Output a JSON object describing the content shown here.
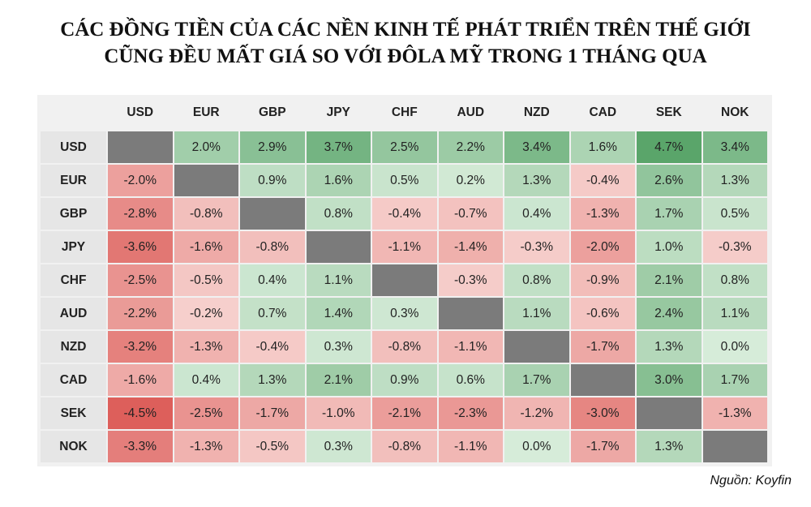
{
  "title": {
    "line1": "CÁC ĐỒNG TIỀN CỦA CÁC NỀN KINH TẾ PHÁT TRIỂN TRÊN THẾ GIỚI",
    "line2": "CŨNG ĐỀU MẤT GIÁ SO VỚI ĐÔLA MỸ TRONG 1 THÁNG QUA"
  },
  "source": "Nguồn: Koyfin",
  "colors": {
    "positive_max": "#5aa56a",
    "positive_min": "#d6ecd9",
    "negative_max": "#dc5a56",
    "negative_min": "#f7d4d1",
    "diagonal": "#7b7b7b"
  },
  "chart_data": {
    "type": "heatmap",
    "columns": [
      "USD",
      "EUR",
      "GBP",
      "JPY",
      "CHF",
      "AUD",
      "NZD",
      "CAD",
      "SEK",
      "NOK"
    ],
    "rows": [
      "USD",
      "EUR",
      "GBP",
      "JPY",
      "CHF",
      "AUD",
      "NZD",
      "CAD",
      "SEK",
      "NOK"
    ],
    "unit": "%",
    "values": [
      [
        null,
        2.0,
        2.9,
        3.7,
        2.5,
        2.2,
        3.4,
        1.6,
        4.7,
        3.4
      ],
      [
        -2.0,
        null,
        0.9,
        1.6,
        0.5,
        0.2,
        1.3,
        -0.4,
        2.6,
        1.3
      ],
      [
        -2.8,
        -0.8,
        null,
        0.8,
        -0.4,
        -0.7,
        0.4,
        -1.3,
        1.7,
        0.5
      ],
      [
        -3.6,
        -1.6,
        -0.8,
        null,
        -1.1,
        -1.4,
        -0.3,
        -2.0,
        1.0,
        -0.3
      ],
      [
        -2.5,
        -0.5,
        0.4,
        1.1,
        null,
        -0.3,
        0.8,
        -0.9,
        2.1,
        0.8
      ],
      [
        -2.2,
        -0.2,
        0.7,
        1.4,
        0.3,
        null,
        1.1,
        -0.6,
        2.4,
        1.1
      ],
      [
        -3.2,
        -1.3,
        -0.4,
        0.3,
        -0.8,
        -1.1,
        null,
        -1.7,
        1.3,
        0.0
      ],
      [
        -1.6,
        0.4,
        1.3,
        2.1,
        0.9,
        0.6,
        1.7,
        null,
        3.0,
        1.7
      ],
      [
        -4.5,
        -2.5,
        -1.7,
        -1.0,
        -2.1,
        -2.3,
        -1.2,
        -3.0,
        null,
        -1.3
      ],
      [
        -3.3,
        -1.3,
        -0.5,
        0.3,
        -0.8,
        -1.1,
        0.0,
        -1.7,
        1.3,
        null
      ]
    ]
  }
}
